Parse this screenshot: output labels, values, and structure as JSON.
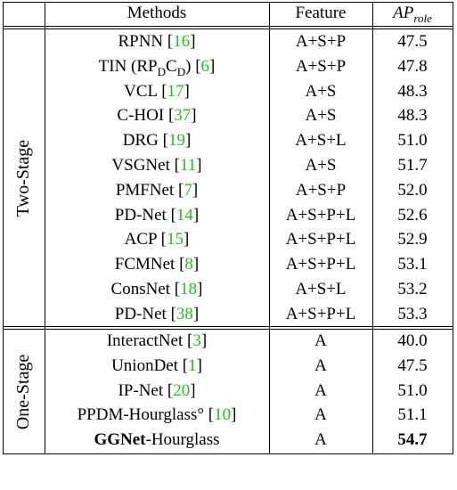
{
  "header": {
    "methods": "Methods",
    "feature": "Feature",
    "ap_base": "AP",
    "ap_sub": "role"
  },
  "groups": [
    {
      "label": "Two-Stage",
      "rows": [
        {
          "method": "RPNN",
          "cite": "16",
          "feature": "A+S+P",
          "ap": "47.5"
        },
        {
          "method": "TIN (RP",
          "method_sub1": "D",
          "method_mid": "C",
          "method_sub2": "D",
          "method_end": ")",
          "cite": "6",
          "feature": "A+S+P",
          "ap": "47.8"
        },
        {
          "method": "VCL",
          "cite": "17",
          "feature": "A+S",
          "ap": "48.3"
        },
        {
          "method": "C-HOI",
          "cite": "37",
          "feature": "A+S",
          "ap": "48.3"
        },
        {
          "method": "DRG",
          "cite": "19",
          "feature": "A+S+L",
          "ap": "51.0"
        },
        {
          "method": "VSGNet",
          "cite": "11",
          "feature": "A+S",
          "ap": "51.7"
        },
        {
          "method": "PMFNet",
          "cite": "7",
          "feature": "A+S+P",
          "ap": "52.0"
        },
        {
          "method": "PD-Net",
          "cite": "14",
          "feature": "A+S+P+L",
          "ap": "52.6"
        },
        {
          "method": "ACP",
          "cite": "15",
          "feature": "A+S+P+L",
          "ap": "52.9"
        },
        {
          "method": "FCMNet",
          "cite": "8",
          "feature": "A+S+P+L",
          "ap": "53.1"
        },
        {
          "method": "ConsNet",
          "cite": "18",
          "feature": "A+S+L",
          "ap": "53.2"
        },
        {
          "method": "PD-Net",
          "cite": "38",
          "feature": "A+S+P+L",
          "ap": "53.3"
        }
      ]
    },
    {
      "label": "One-Stage",
      "rows": [
        {
          "method": "InteractNet",
          "cite": "3",
          "feature": "A",
          "ap": "40.0"
        },
        {
          "method": "UnionDet",
          "cite": "1",
          "feature": "A",
          "ap": "47.5"
        },
        {
          "method": "IP-Net",
          "cite": "20",
          "feature": "A",
          "ap": "51.0"
        },
        {
          "method": "PPDM-Hourglass°",
          "cite": "10",
          "feature": "A",
          "ap": "51.1"
        },
        {
          "method_bold": "GGNet",
          "method": "-Hourglass",
          "feature": "A",
          "ap": "54.7"
        }
      ]
    }
  ]
}
